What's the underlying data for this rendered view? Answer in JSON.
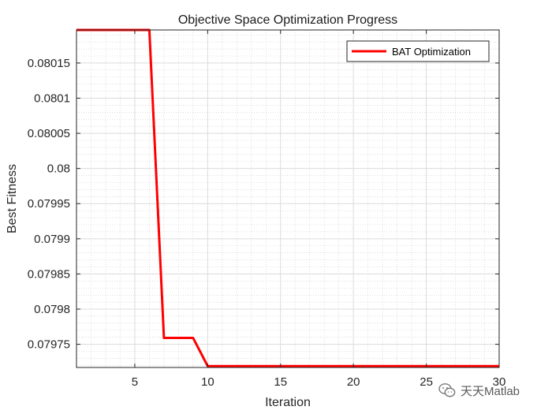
{
  "chart_data": {
    "type": "line",
    "title": "Objective Space Optimization Progress",
    "xlabel": "Iteration",
    "ylabel": "Best Fitness",
    "xlim": [
      1,
      30
    ],
    "ylim": [
      0.079717,
      0.080197
    ],
    "xticks": [
      5,
      10,
      15,
      20,
      25,
      30
    ],
    "yticks": [
      0.07975,
      0.0798,
      0.07985,
      0.0799,
      0.07995,
      0.08,
      0.08005,
      0.0801,
      0.08015
    ],
    "ytick_labels": [
      "0.07975",
      "0.0798",
      "0.07985",
      "0.0799",
      "0.07995",
      "0.08",
      "0.08005",
      "0.0801",
      "0.08015"
    ],
    "grid": true,
    "minor_grid": true,
    "legend_position": "top-right",
    "series": [
      {
        "name": "BAT Optimization",
        "color": "#ff0000",
        "x": [
          1,
          2,
          3,
          4,
          5,
          6,
          7,
          8,
          9,
          10,
          11,
          12,
          13,
          14,
          15,
          16,
          17,
          18,
          19,
          20,
          21,
          22,
          23,
          24,
          25,
          26,
          27,
          28,
          29,
          30
        ],
        "y": [
          0.080197,
          0.080197,
          0.080197,
          0.080197,
          0.080197,
          0.080197,
          0.079759,
          0.079759,
          0.079759,
          0.079719,
          0.079719,
          0.079719,
          0.079719,
          0.079719,
          0.079719,
          0.079719,
          0.079719,
          0.079719,
          0.079719,
          0.079719,
          0.079719,
          0.079719,
          0.079719,
          0.079719,
          0.079719,
          0.079719,
          0.079719,
          0.079719,
          0.079719,
          0.079719
        ]
      }
    ]
  },
  "watermark": {
    "text": "天天Matlab",
    "icon": "wechat-icon"
  }
}
